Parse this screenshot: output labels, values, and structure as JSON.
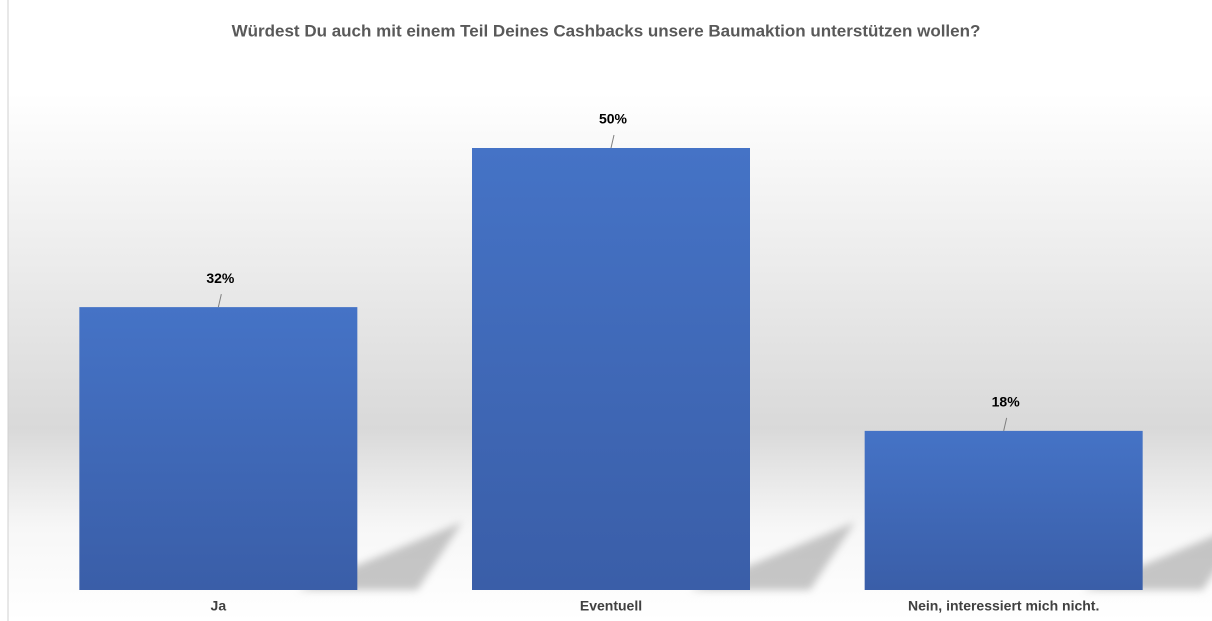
{
  "chart_data": {
    "type": "bar",
    "title": "Würdest Du auch mit einem Teil Deines Cashbacks unsere Baumaktion unterstützen wollen?",
    "categories": [
      "Ja",
      "Eventuell",
      "Nein, interessiert mich nicht."
    ],
    "values": [
      32,
      50,
      18
    ],
    "value_labels": [
      "32%",
      "50%",
      "18%"
    ],
    "color": "#4472c4"
  }
}
